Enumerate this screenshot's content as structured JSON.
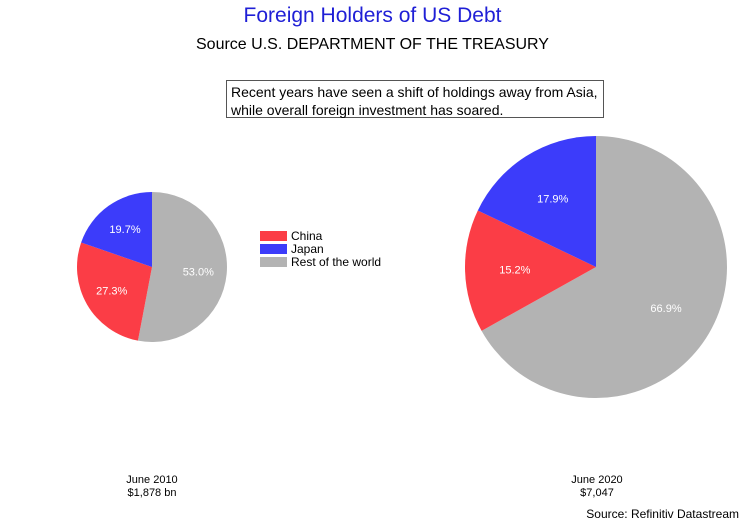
{
  "title": "Foreign Holders of US Debt",
  "subtitle": "Source U.S. DEPARTMENT OF THE TREASURY",
  "annotation": {
    "line1": "Recent years have seen a shift of holdings away from Asia,",
    "line2": "while overall foreign investment has soared."
  },
  "colors": {
    "China": "#fb3d46",
    "Japan": "#3c3cfa",
    "Rest of the world": "#b3b3b3"
  },
  "chart_data": [
    {
      "type": "pie",
      "categories": [
        "China",
        "Japan",
        "Rest of the world"
      ],
      "values": [
        27.3,
        19.7,
        53.0
      ],
      "value_labels": [
        "27.3%",
        "19.7%",
        "53.0%"
      ],
      "caption_line1": "June 2010",
      "caption_line2": "$1,878 bn",
      "legend_placement": "right"
    },
    {
      "type": "pie",
      "categories": [
        "China",
        "Japan",
        "Rest of the world"
      ],
      "values": [
        15.2,
        17.9,
        66.9
      ],
      "value_labels": [
        "15.2%",
        "17.9%",
        "66.9%"
      ],
      "caption_line1": "June 2020",
      "caption_line2": "$7,047"
    }
  ],
  "legend": [
    "China",
    "Japan",
    "Rest of the world"
  ],
  "source_note": "Source: Refinitiv Datastream"
}
